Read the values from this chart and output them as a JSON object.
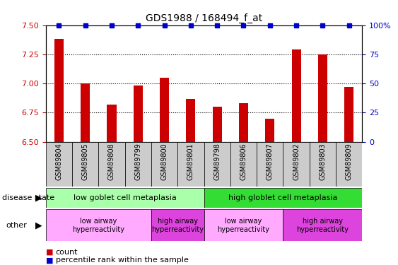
{
  "title": "GDS1988 / 168494_f_at",
  "samples": [
    "GSM89804",
    "GSM89805",
    "GSM89808",
    "GSM89799",
    "GSM89800",
    "GSM89801",
    "GSM89798",
    "GSM89806",
    "GSM89807",
    "GSM89802",
    "GSM89803",
    "GSM89809"
  ],
  "bar_values": [
    7.38,
    7.0,
    6.82,
    6.98,
    7.05,
    6.87,
    6.8,
    6.83,
    6.7,
    7.29,
    7.25,
    6.97
  ],
  "percentile_values": [
    100,
    100,
    100,
    100,
    100,
    100,
    100,
    100,
    100,
    100,
    100,
    100
  ],
  "bar_color": "#cc0000",
  "percentile_color": "#0000cc",
  "ylim_left": [
    6.5,
    7.5
  ],
  "ylim_right": [
    0,
    100
  ],
  "yticks_left": [
    6.5,
    6.75,
    7.0,
    7.25,
    7.5
  ],
  "yticks_right": [
    0,
    25,
    50,
    75,
    100
  ],
  "gridlines": [
    6.75,
    7.0,
    7.25
  ],
  "disease_state_groups": [
    {
      "label": "low goblet cell metaplasia",
      "start": 0,
      "end": 6,
      "color": "#aaffaa"
    },
    {
      "label": "high globlet cell metaplasia",
      "start": 6,
      "end": 12,
      "color": "#33dd33"
    }
  ],
  "other_groups": [
    {
      "label": "low airway\nhyperreactivity",
      "start": 0,
      "end": 4,
      "color": "#ffaaff"
    },
    {
      "label": "high airway\nhyperreactivity",
      "start": 4,
      "end": 6,
      "color": "#dd44dd"
    },
    {
      "label": "low airway\nhyperreactivity",
      "start": 6,
      "end": 9,
      "color": "#ffaaff"
    },
    {
      "label": "high airway\nhyperreactivity",
      "start": 9,
      "end": 12,
      "color": "#dd44dd"
    }
  ],
  "label_disease_state": "disease state",
  "label_other": "other",
  "legend_count": "count",
  "legend_percentile": "percentile rank within the sample",
  "bg_color": "#ffffff",
  "tick_color_left": "#cc0000",
  "tick_color_right": "#0000cc",
  "xtick_bg": "#cccccc",
  "bar_width": 0.35
}
